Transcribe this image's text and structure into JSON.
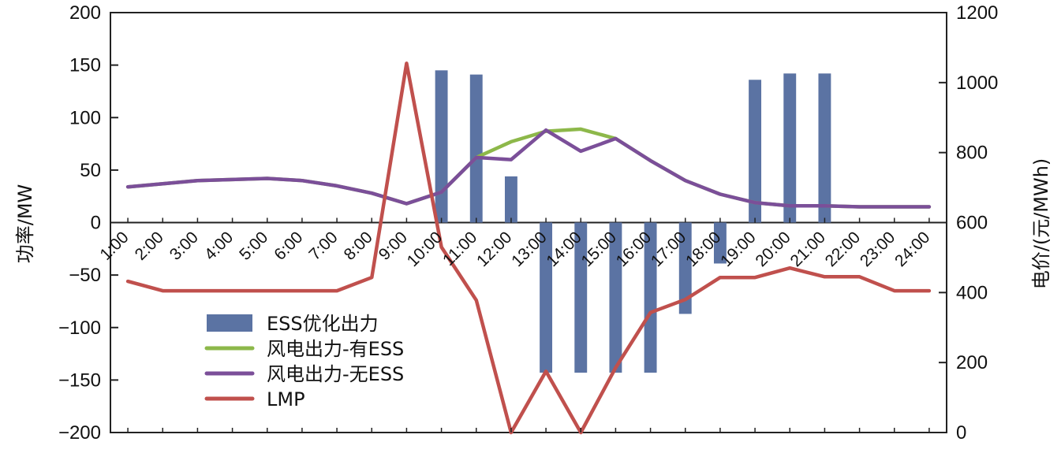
{
  "chart_data": {
    "type": "bar+line",
    "categories": [
      "1:00",
      "2:00",
      "3:00",
      "4:00",
      "5:00",
      "6:00",
      "7:00",
      "8:00",
      "9:00",
      "10:00",
      "11:00",
      "12:00",
      "13:00",
      "14:00",
      "15:00",
      "16:00",
      "17:00",
      "18:00",
      "19:00",
      "20:00",
      "21:00",
      "22:00",
      "23:00",
      "24:00"
    ],
    "series": [
      {
        "name": "ESS优化出力",
        "kind": "bar",
        "axis": "left",
        "color": "#5B73A3",
        "values": [
          0,
          0,
          0,
          0,
          0,
          0,
          0,
          0,
          0,
          145,
          141,
          44,
          -143,
          -143,
          -143,
          -143,
          -87,
          -39,
          136,
          142,
          142,
          0,
          0,
          0
        ]
      },
      {
        "name": "风电出力-有ESS",
        "kind": "line",
        "axis": "left",
        "color": "#8DB84A",
        "values": [
          34,
          37,
          40,
          41,
          42,
          40,
          35,
          28,
          18,
          29,
          62,
          77,
          87,
          89,
          80,
          59,
          40,
          27,
          19,
          16,
          16,
          15,
          15,
          15
        ]
      },
      {
        "name": "风电出力-无ESS",
        "kind": "line",
        "axis": "left",
        "color": "#7B4F99",
        "values": [
          34,
          37,
          40,
          41,
          42,
          40,
          35,
          28,
          18,
          29,
          62,
          60,
          88,
          68,
          80,
          59,
          40,
          27,
          19,
          16,
          16,
          15,
          15,
          15
        ]
      },
      {
        "name": "LMP",
        "kind": "line",
        "axis": "right",
        "color": "#C0504D",
        "values": [
          432,
          405,
          405,
          405,
          405,
          405,
          405,
          443,
          1055,
          530,
          378,
          0,
          175,
          0,
          185,
          343,
          380,
          443,
          443,
          470,
          445,
          445,
          405,
          405
        ]
      }
    ],
    "left_axis": {
      "label": "功率/MW",
      "range": [
        -200,
        200
      ],
      "ticks": [
        200,
        150,
        100,
        50,
        0,
        -50,
        -100,
        -150,
        -200
      ]
    },
    "right_axis": {
      "label": "电价/(元/MWh)",
      "range": [
        0,
        1200
      ],
      "ticks": [
        1200,
        1000,
        800,
        600,
        400,
        200,
        0
      ]
    },
    "legend": {
      "position": "lower-left"
    }
  }
}
